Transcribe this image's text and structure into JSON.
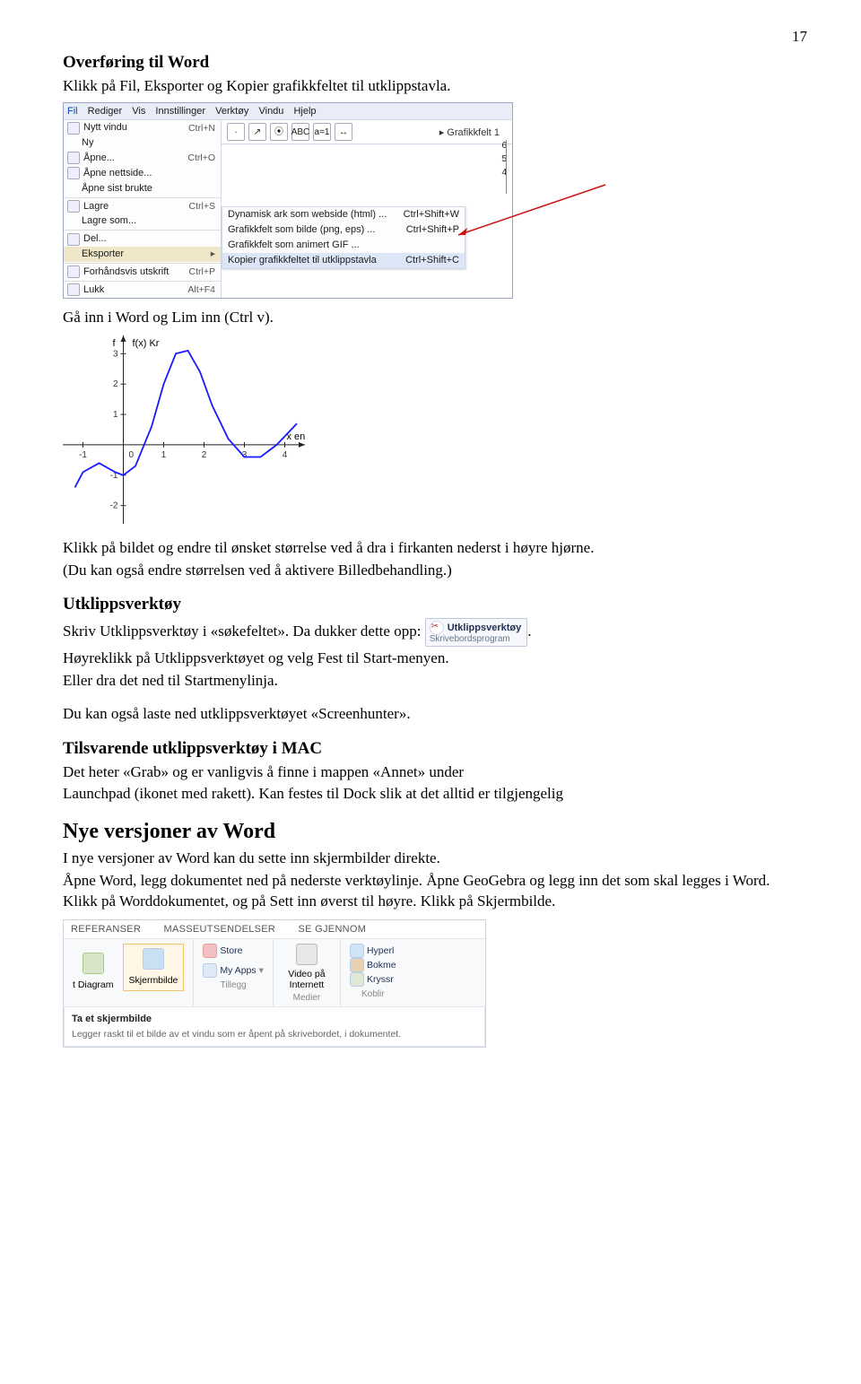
{
  "page_number": "17",
  "h_overforing": "Overføring til Word",
  "p_overforing": "Klikk på Fil, Eksporter og Kopier grafikkfeltet til utklippstavla.",
  "ss1": {
    "menubar": [
      "Fil",
      "Rediger",
      "Vis",
      "Innstillinger",
      "Verktøy",
      "Vindu",
      "Hjelp"
    ],
    "dropdown": [
      {
        "label": "Nytt vindu",
        "sc": "Ctrl+N"
      },
      {
        "label": "Ny",
        "sc": ""
      },
      {
        "label": "Åpne...",
        "sc": "Ctrl+O"
      },
      {
        "label": "Åpne nettside...",
        "sc": ""
      },
      {
        "label": "Åpne sist brukte",
        "sc": ""
      },
      {
        "sep": true
      },
      {
        "label": "Lagre",
        "sc": "Ctrl+S"
      },
      {
        "label": "Lagre som...",
        "sc": ""
      },
      {
        "sep": true
      },
      {
        "label": "Del...",
        "sc": ""
      },
      {
        "label": "Eksporter",
        "sc": "",
        "sel": true
      },
      {
        "sep": true
      },
      {
        "label": "Forhåndsvis utskrift",
        "sc": "Ctrl+P"
      },
      {
        "sep": true
      },
      {
        "label": "Lukk",
        "sc": "Alt+F4"
      }
    ],
    "toolbar_glyphs": [
      "·",
      "↗",
      "⦿",
      "ABC",
      "a=1",
      "↔"
    ],
    "graf_title": "▸ Grafikkfelt 1",
    "axis_ticks": [
      "6",
      "5",
      "4"
    ],
    "sub2": [
      {
        "l": "Dynamisk ark som webside (html) ...",
        "r": "Ctrl+Shift+W"
      },
      {
        "l": "Grafikkfelt som bilde (png, eps) ...",
        "r": "Ctrl+Shift+P"
      },
      {
        "l": "Grafikkfelt som animert GIF ...",
        "r": ""
      },
      {
        "l": "Kopier grafikkfeltet til utklippstavla",
        "r": "Ctrl+Shift+C",
        "hl": true
      }
    ]
  },
  "p_ga_inn": "Gå inn i Word og Lim inn (Ctrl v).",
  "chart": {
    "y_label": "f",
    "y_label2": "f(x) Kr",
    "x_label": "x enheter",
    "x_ticks": [
      -1,
      0,
      1,
      2,
      3,
      4
    ],
    "y_ticks": [
      -2,
      -1,
      0,
      1,
      2,
      3
    ],
    "curve": [
      [
        -1.2,
        -1.4
      ],
      [
        -1,
        -0.9
      ],
      [
        -0.6,
        -0.6
      ],
      [
        -0.2,
        -0.9
      ],
      [
        0,
        -1.0
      ],
      [
        0.3,
        -0.7
      ],
      [
        0.7,
        0.6
      ],
      [
        1.0,
        2.0
      ],
      [
        1.3,
        3.0
      ],
      [
        1.6,
        3.1
      ],
      [
        1.9,
        2.4
      ],
      [
        2.2,
        1.3
      ],
      [
        2.6,
        0.2
      ],
      [
        3.0,
        -0.4
      ],
      [
        3.4,
        -0.4
      ],
      [
        3.8,
        0.0
      ],
      [
        4.3,
        0.7
      ]
    ],
    "color": "#1a1aff",
    "axis_color": "#222222",
    "bg": "#ffffff"
  },
  "p_klikk_bilde1": "Klikk på bildet og endre til ønsket størrelse ved å dra i firkanten nederst i høyre hjørne.",
  "p_klikk_bilde2": "(Du kan også endre størrelsen ved å aktivere Billedbehandling.)",
  "h_utklipp": "Utklippsverktøy",
  "p_utklipp_line_pre": "Skriv Utklippsverktøy i «søkefeltet». Da dukker dette opp: ",
  "chip": {
    "title": "Utklippsverktøy",
    "sub": "Skrivebordsprogram"
  },
  "p_utklipp_line_post": ".",
  "p_hoyreklikk": "Høyreklikk på Utklippsverktøyet og velg Fest til Start-menyen.",
  "p_eller_dra": "Eller dra det ned til Startmenylinja.",
  "p_screenhunter": "Du kan også laste ned utklippsverktøyet «Screenhunter».",
  "h_mac": "Tilsvarende utklippsverktøy i MAC",
  "p_mac1": "Det heter «Grab» og er vanligvis å finne i mappen «Annet» under",
  "p_mac2": "Launchpad (ikonet med rakett). Kan festes til Dock slik at det alltid er tilgjengelig",
  "h_nye_word": "Nye versjoner av Word",
  "p_nye_word": "I nye versjoner av Word kan du sette inn skjermbilder direkte.",
  "p_apne_word": "Åpne Word, legg dokumentet ned på nederste verktøylinje. Åpne GeoGebra og legg inn det som skal legges i Word. Klikk på Worddokumentet, og på Sett inn øverst til høyre. Klikk på Skjermbilde.",
  "ss2": {
    "tabs": [
      "REFERANSER",
      "MASSEUTSENDELSER",
      "SE GJENNOM"
    ],
    "g1": {
      "a": "t Diagram",
      "b": "Skjermbilde",
      "label": ""
    },
    "g2": {
      "items": [
        "Store",
        "My Apps"
      ],
      "label": "Tillegg"
    },
    "g3": {
      "item": "Video på Internett",
      "label": "Medier"
    },
    "g4": {
      "items": [
        "Hyperl",
        "Bokme",
        "Kryssr"
      ],
      "label": "Koblir"
    },
    "callout": {
      "h": "Ta et skjermbilde",
      "d": "Legger raskt til et bilde av et vindu som er åpent på skrivebordet, i dokumentet."
    }
  }
}
